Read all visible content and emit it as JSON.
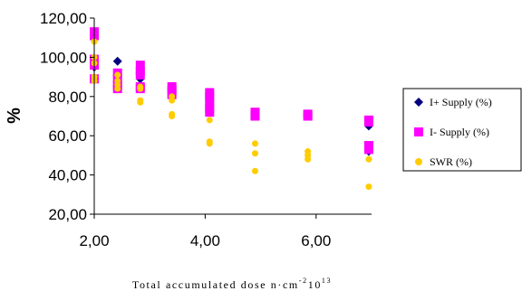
{
  "chart_data": {
    "type": "scatter",
    "xlabel_main": "Total accumulated dose n·cm",
    "xlabel_sup1": "-2",
    "xlabel_mid": "10",
    "xlabel_sup2": "13",
    "ylabel": "%",
    "xlim": [
      2.0,
      7.0
    ],
    "ylim": [
      20.0,
      120.0
    ],
    "x_ticks": [
      2.0,
      4.0,
      6.0
    ],
    "x_tick_labels": [
      "2,00",
      "4,00",
      "6,00"
    ],
    "y_ticks": [
      20,
      40,
      60,
      80,
      100,
      120
    ],
    "y_tick_labels": [
      "20,00",
      "40,00",
      "60,00",
      "80,00",
      "100,00",
      "120,00"
    ],
    "grid": false,
    "legend_position": "right",
    "series": [
      {
        "name": "I+ Supply (%)",
        "marker": "diamond",
        "color": "#000080",
        "points": [
          [
            2.0,
            112
          ],
          [
            2.0,
            110
          ],
          [
            2.0,
            97
          ],
          [
            2.0,
            95
          ],
          [
            2.0,
            89
          ],
          [
            2.42,
            98
          ],
          [
            2.42,
            92
          ],
          [
            2.42,
            90
          ],
          [
            2.42,
            85
          ],
          [
            2.42,
            84
          ],
          [
            2.83,
            93
          ],
          [
            2.83,
            89
          ],
          [
            2.83,
            85
          ],
          [
            2.83,
            84
          ],
          [
            3.4,
            84
          ],
          [
            3.4,
            82
          ],
          [
            3.4,
            80
          ],
          [
            4.08,
            80
          ],
          [
            4.08,
            77
          ],
          [
            4.08,
            75
          ],
          [
            4.08,
            73
          ],
          [
            4.9,
            72
          ],
          [
            4.9,
            70
          ],
          [
            5.85,
            71
          ],
          [
            5.85,
            70
          ],
          [
            6.95,
            66
          ],
          [
            6.95,
            65
          ],
          [
            6.95,
            54
          ],
          [
            6.95,
            52
          ]
        ]
      },
      {
        "name": "I- Supply (%)",
        "marker": "square",
        "color": "#FF00FF",
        "points": [
          [
            2.0,
            113
          ],
          [
            2.0,
            111
          ],
          [
            2.0,
            99
          ],
          [
            2.0,
            96
          ],
          [
            2.0,
            89
          ],
          [
            2.42,
            92
          ],
          [
            2.42,
            89
          ],
          [
            2.42,
            86
          ],
          [
            2.42,
            84
          ],
          [
            2.83,
            96
          ],
          [
            2.83,
            93
          ],
          [
            2.83,
            91
          ],
          [
            2.83,
            85
          ],
          [
            2.83,
            84
          ],
          [
            3.4,
            85
          ],
          [
            3.4,
            83
          ],
          [
            3.4,
            81
          ],
          [
            4.08,
            82
          ],
          [
            4.08,
            80
          ],
          [
            4.08,
            77
          ],
          [
            4.08,
            74
          ],
          [
            4.08,
            72
          ],
          [
            4.9,
            72
          ],
          [
            4.9,
            71
          ],
          [
            4.9,
            70
          ],
          [
            5.85,
            71
          ],
          [
            5.85,
            70
          ],
          [
            6.95,
            68
          ],
          [
            6.95,
            67
          ],
          [
            6.95,
            55
          ],
          [
            6.95,
            53
          ]
        ]
      },
      {
        "name": "SWR (%)",
        "marker": "circle",
        "color": "#FFCC00",
        "points": [
          [
            2.0,
            108
          ],
          [
            2.0,
            100
          ],
          [
            2.0,
            97
          ],
          [
            2.0,
            90
          ],
          [
            2.0,
            88
          ],
          [
            2.42,
            91
          ],
          [
            2.42,
            88
          ],
          [
            2.42,
            86
          ],
          [
            2.42,
            84
          ],
          [
            2.83,
            85
          ],
          [
            2.83,
            84
          ],
          [
            2.83,
            78
          ],
          [
            2.83,
            77
          ],
          [
            3.4,
            80
          ],
          [
            3.4,
            78
          ],
          [
            3.4,
            71
          ],
          [
            3.4,
            70
          ],
          [
            4.08,
            68
          ],
          [
            4.08,
            57
          ],
          [
            4.08,
            56
          ],
          [
            4.9,
            56
          ],
          [
            4.9,
            51
          ],
          [
            4.9,
            42
          ],
          [
            5.85,
            52
          ],
          [
            5.85,
            50
          ],
          [
            5.85,
            48
          ],
          [
            6.95,
            48
          ],
          [
            6.95,
            34
          ]
        ]
      }
    ]
  }
}
